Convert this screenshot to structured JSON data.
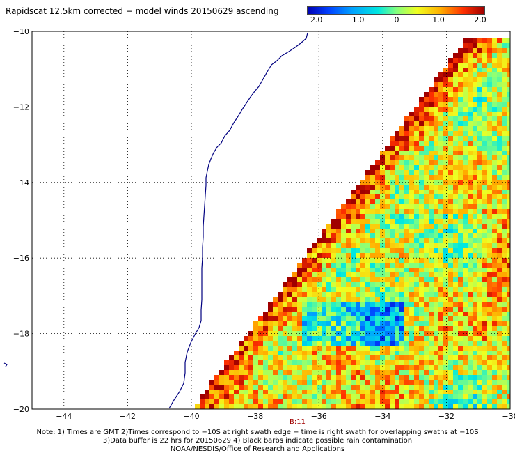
{
  "title": "Rapidscat 12.5km corrected − model winds 20150629 ascending",
  "colorbar": {
    "ticks": [
      "−2.0",
      "−1.0",
      "0",
      "1.0",
      "2.0"
    ],
    "tick_values": [
      -2.0,
      -1.0,
      0,
      1.0,
      2.0
    ],
    "colors": [
      "#0000b4",
      "#00a0ff",
      "#80ff80",
      "#ffb000",
      "#a00000"
    ]
  },
  "map": {
    "lon_ticks": [
      "−44",
      "−42",
      "−40",
      "−38",
      "−36",
      "−34",
      "−32",
      "−30"
    ],
    "lon_values": [
      -44,
      -42,
      -40,
      -38,
      -36,
      -34,
      -32,
      -30
    ],
    "lat_ticks": [
      "−10",
      "−12",
      "−14",
      "−16",
      "−18",
      "−20"
    ],
    "lat_values": [
      -10,
      -12,
      -14,
      -16,
      -18,
      -20
    ],
    "lon_range": [
      -45,
      -30
    ],
    "lat_range": [
      -20,
      -10
    ],
    "coastline_color": "#000080",
    "gridline_style": "dotted"
  },
  "orbit_label": "B:11",
  "notes": [
    "Note: 1) Times are GMT 2)Times correspond to −10S at right swath edge − time is right swath for overlapping swaths at −10S",
    "3)Data buffer is 22 hrs for 20150629 4) Black barbs indicate possible rain contamination",
    "NOAA/NESDIS/Office of Research and Applications"
  ]
}
